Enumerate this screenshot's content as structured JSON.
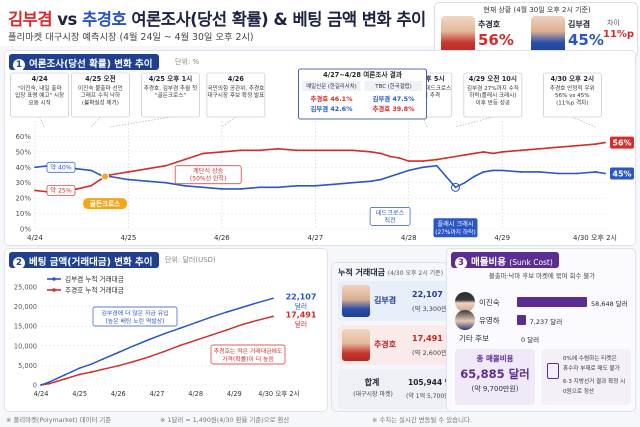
{
  "header": {
    "title_a": "김부겸",
    "title_vs": " vs ",
    "title_b": "추경호",
    "title_rest": " 여론조사(당선 확률) & 베팅 금액 변화 추이",
    "subtitle": "폴리마켓 대구시장 예측시장 (4월 24일 ~ 4월 30일 오후 2시)"
  },
  "current": {
    "label": "현재 상황 (4월 30일 오후 2시 기준)",
    "choo_name": "추경호",
    "choo_pct": "56%",
    "kim_name": "김부겸",
    "kim_pct": "45%",
    "gap_label": "차이",
    "gap_value": "11%p"
  },
  "section1": {
    "num": "1",
    "title": "여론조사(당선 확률) 변화 추이",
    "unit": "단위: %",
    "annotations": [
      {
        "date": "4/24",
        "text": "\"이진숙, 내일 출마 입장 표명 예고\" 시장 요동 시작"
      },
      {
        "date": "4/25 오전",
        "text": "이진숙 불출마 선언 그래프 수직 낙하 (불확실성 제거)"
      },
      {
        "date": "4/25 오후 1시",
        "text": "추경호, 김부겸 추월 첫 \"골든크로스\""
      },
      {
        "date": "4/26",
        "text": "국민의힘 공관위, 추경호 대구시장 후보 확정 발표"
      },
      {
        "date": "4/28 오후 5시",
        "text": "김부겸 반등, 데드크로스 직전 수치 추격"
      },
      {
        "date": "4/29 오전 10시",
        "text": "김부겸 27%까지 수직 하락(플래시 크래시) 이후 반등 성공"
      },
      {
        "date": "4/30 오후 2시",
        "text": "추경호 안정적 우위 56% vs 45% (11%p 격차)"
      }
    ],
    "poll_box": {
      "title": "4/27~4/28 여론조사 결과",
      "left_head": "매일신문",
      "left_head_sub": "(한길리서치)",
      "left_kim": "김부겸 42.6%",
      "left_choo": "추경호 46.1%",
      "right_head": "TBC",
      "right_head_sub": "(한국갤럽)",
      "right_kim": "김부겸 47.5%",
      "right_choo": "추경호 39.8%"
    },
    "callouts": {
      "kim_start": "약 40%",
      "choo_start": "약 25%",
      "golden": "골든크로스",
      "step": "계단식 상승 (50%선 안착)",
      "dead": "데드크로스 직전",
      "flash": "플래시 크래시 (27%까지 하락)"
    },
    "end_labels": {
      "choo": "56%",
      "kim": "45%"
    }
  },
  "chart_data": [
    {
      "type": "line",
      "title": "여론조사(당선 확률) 변화 추이",
      "ylabel": "단위: %",
      "ylim": [
        0,
        70
      ],
      "yticks": [
        "0%",
        "10%",
        "20%",
        "30%",
        "40%",
        "50%",
        "60%"
      ],
      "x_ticks": [
        "4/24",
        "4/25",
        "4/26",
        "4/27",
        "4/28",
        "4/29",
        "4/30 오후 2시"
      ],
      "x": [
        0,
        0.15,
        0.3,
        0.45,
        0.6,
        0.7,
        0.8,
        1.0,
        1.2,
        1.4,
        1.6,
        1.8,
        2.0,
        2.2,
        2.4,
        2.6,
        2.8,
        3.0,
        3.2,
        3.4,
        3.6,
        3.7,
        3.8,
        3.9,
        4.0,
        4.15,
        4.3,
        4.4,
        4.5,
        4.6,
        4.7,
        4.8,
        4.9,
        5.0,
        5.2,
        5.4,
        5.6,
        5.8,
        6.0,
        6.1
      ],
      "series": [
        {
          "name": "김부겸",
          "color": "#2a56c6",
          "values": [
            40,
            41,
            40,
            39,
            38,
            35,
            34,
            32,
            31,
            30,
            28,
            27,
            26,
            26,
            27,
            27,
            28,
            28,
            29,
            30,
            31,
            32,
            34,
            36,
            38,
            40,
            41,
            34,
            27,
            30,
            34,
            37,
            38,
            38,
            37,
            37,
            36,
            36,
            37,
            36
          ]
        },
        {
          "name": "추경호",
          "color": "#d62b2b",
          "values": [
            25,
            24,
            25,
            26,
            28,
            32,
            35,
            37,
            39,
            41,
            45,
            49,
            50,
            51,
            51,
            52,
            51,
            51,
            51,
            51,
            50,
            49,
            47,
            46,
            44,
            44,
            45,
            46,
            47,
            48,
            49,
            50,
            49,
            50,
            51,
            52,
            53,
            54,
            55,
            56
          ]
        }
      ]
    },
    {
      "type": "line",
      "title": "베팅 금액(거래대금) 변화 추이",
      "ylabel": "단위: 달러(USD)",
      "ylim": [
        0,
        25000
      ],
      "yticks": [
        "0",
        "5,000",
        "10,000",
        "15,000",
        "20,000",
        "25,000"
      ],
      "x_ticks": [
        "4/24",
        "4/25",
        "4/26",
        "4/27",
        "4/28",
        "4/29",
        "4/30 오후 2시"
      ],
      "x": [
        0,
        0.2,
        0.4,
        0.6,
        0.8,
        1.0,
        1.3,
        1.6,
        2.0,
        2.4,
        2.8,
        3.2,
        3.6,
        4.0,
        4.4,
        4.8,
        5.2,
        5.6,
        6.0
      ],
      "series": [
        {
          "name": "추경호 누적 거래대금",
          "color": "#d62b2b",
          "values": [
            0,
            300,
            900,
            1500,
            2100,
            2700,
            3300,
            4000,
            4900,
            6000,
            7200,
            8600,
            10100,
            11400,
            12700,
            14000,
            15400,
            16500,
            17491
          ]
        },
        {
          "name": "김부겸 누적 거래대금",
          "color": "#2a56c6",
          "values": [
            0,
            700,
            1600,
            2500,
            3400,
            4300,
            5300,
            6600,
            8300,
            10000,
            11600,
            13100,
            14500,
            15900,
            17300,
            18600,
            19800,
            21000,
            22107
          ]
        }
      ]
    }
  ],
  "section2": {
    "num": "2",
    "title": "베팅 금액(거래대금) 변화 추이",
    "unit": "단위: 달러(USD)",
    "end_kim": "22,107",
    "end_kim_unit": "달러",
    "end_choo": "17,491",
    "end_choo_unit": "달러",
    "note_blue": "김부겸에 더 많은 자금 유입 (높은 배팅 노린 역발상)",
    "note_red": "추경호는 적은 거래대금에도 가격(확률)이 더 높음"
  },
  "balance": {
    "title": "누적 거래대금",
    "title_sub": "(4/30 오후 2시 기준)",
    "kim_name": "김부겸",
    "kim_val": "22,107 달러",
    "kim_krw": "(약 3,300만원)",
    "choo_name": "추경호",
    "choo_val": "17,491 달러",
    "choo_krw": "(약 2,600만원)",
    "total_label": "합계",
    "total_label_sub": "(대구시장 마켓)",
    "total_val": "105,944 달러",
    "total_krw": "(약 1억 5,700만원)"
  },
  "sunk": {
    "num": "3",
    "title": "매몰비용",
    "title_sub": "(Sunk Cost)",
    "desc": "불출마·낙마 후보 마켓에 묶여 회수 불가",
    "rows": [
      {
        "name": "이진숙",
        "value": 58648,
        "label": "58,648 달러"
      },
      {
        "name": "유영하",
        "value": 7237,
        "label": "7,237 달러"
      },
      {
        "name": "기타 후보",
        "value": 0,
        "label": "0 달러"
      }
    ],
    "total_label": "총 매몰비용",
    "total_val": "65,885 달러",
    "total_krw": "(약 9,700만원)",
    "note_a": "0%에 수렴하는 티켓은",
    "note_b": "휴수자 부재로 매도 불가",
    "note_c": "6·3 지방선거 결과 확정 시",
    "note_d": "0원으로 정산"
  },
  "footer": {
    "source": "※ 폴리마켓(Polymarket) 데이터 기준",
    "rate": "※ 1달러 = 1,490원(4/30 환율 기준)으로 환산",
    "caveat": "※ 수치는 실시간 변동될 수 있습니다."
  },
  "colors": {
    "red": "#d62b2b",
    "blue": "#2a56c6",
    "navy": "#1f3f8f",
    "purple": "#5b2d91",
    "gold": "#f2a71b"
  }
}
